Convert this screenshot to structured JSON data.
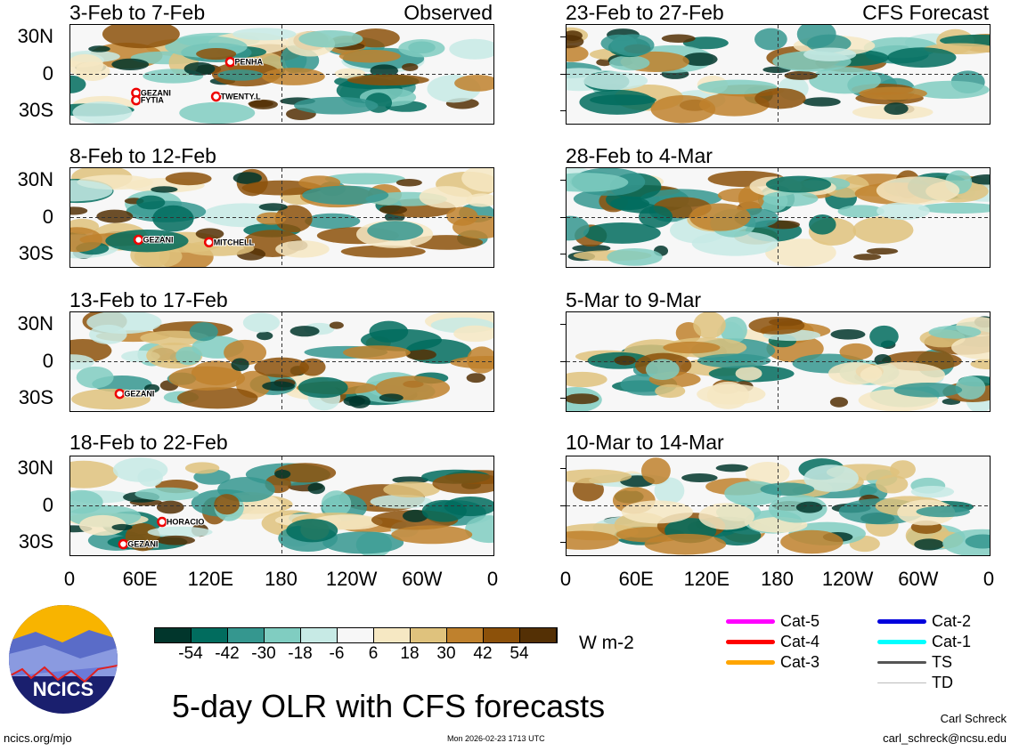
{
  "title": "5-day OLR with CFS forecasts",
  "footer": {
    "url": "ncics.org/mjo",
    "timestamp": "Mon 2026-02-23 1713 UTC",
    "author": "Carl Schreck",
    "email": "carl_schreck@ncsu.edu"
  },
  "logo": {
    "text": "NCICS"
  },
  "chart_data": {
    "type": "heatmap",
    "variable": "OLR anomaly",
    "units": "W m-2",
    "colorbar": {
      "ticks": [
        "-54",
        "-42",
        "-30",
        "-18",
        "-6",
        "6",
        "18",
        "30",
        "42",
        "54"
      ],
      "colors": [
        "#01362c",
        "#016c5e",
        "#35978f",
        "#80cdc1",
        "#c7eae5",
        "#f7f7f7",
        "#f6e8c3",
        "#dfc27d",
        "#bf812d",
        "#8c510a",
        "#543005"
      ]
    },
    "yticks": [
      "30N",
      "0",
      "30S"
    ],
    "xticks": [
      "0",
      "60E",
      "120E",
      "180",
      "120W",
      "60W",
      "0"
    ],
    "lat_range": [
      -40,
      40
    ],
    "lon_range": [
      0,
      360
    ],
    "panels": [
      {
        "title": "3-Feb to 7-Feb",
        "label": "Observed",
        "storms": [
          {
            "name": "PENHA",
            "lon": 136,
            "lat": 10
          },
          {
            "name": "GEZANI",
            "lon": 56,
            "lat": -15
          },
          {
            "name": "FYTIA",
            "lon": 56,
            "lat": -21
          },
          {
            "name": "TWENTY.L",
            "lon": 124,
            "lat": -18
          }
        ]
      },
      {
        "title": "23-Feb to 27-Feb",
        "label": "CFS Forecast",
        "storms": []
      },
      {
        "title": "8-Feb to 12-Feb",
        "label": "",
        "storms": [
          {
            "name": "GEZANI",
            "lon": 58,
            "lat": -18
          },
          {
            "name": "MITCHELL",
            "lon": 118,
            "lat": -20
          }
        ]
      },
      {
        "title": "28-Feb to 4-Mar",
        "label": "",
        "storms": []
      },
      {
        "title": "13-Feb to 17-Feb",
        "label": "",
        "storms": [
          {
            "name": "GEZANI",
            "lon": 42,
            "lat": -26
          }
        ]
      },
      {
        "title": "5-Mar to 9-Mar",
        "label": "",
        "storms": []
      },
      {
        "title": "18-Feb to 22-Feb",
        "label": "",
        "storms": [
          {
            "name": "HORACIO",
            "lon": 78,
            "lat": -13
          },
          {
            "name": "GEZANI",
            "lon": 45,
            "lat": -31
          }
        ]
      },
      {
        "title": "10-Mar to 14-Mar",
        "label": "",
        "storms": []
      }
    ]
  },
  "legend": {
    "items": [
      {
        "label": "Cat-5",
        "color": "#ff00ff"
      },
      {
        "label": "Cat-4",
        "color": "#ff0000"
      },
      {
        "label": "Cat-3",
        "color": "#ffa500"
      },
      {
        "label": "Cat-2",
        "color": "#0000dd"
      },
      {
        "label": "Cat-1",
        "color": "#00ffff"
      },
      {
        "label": "TS",
        "color": "#555555"
      },
      {
        "label": "TD",
        "color": "#bbbbbb"
      }
    ]
  }
}
